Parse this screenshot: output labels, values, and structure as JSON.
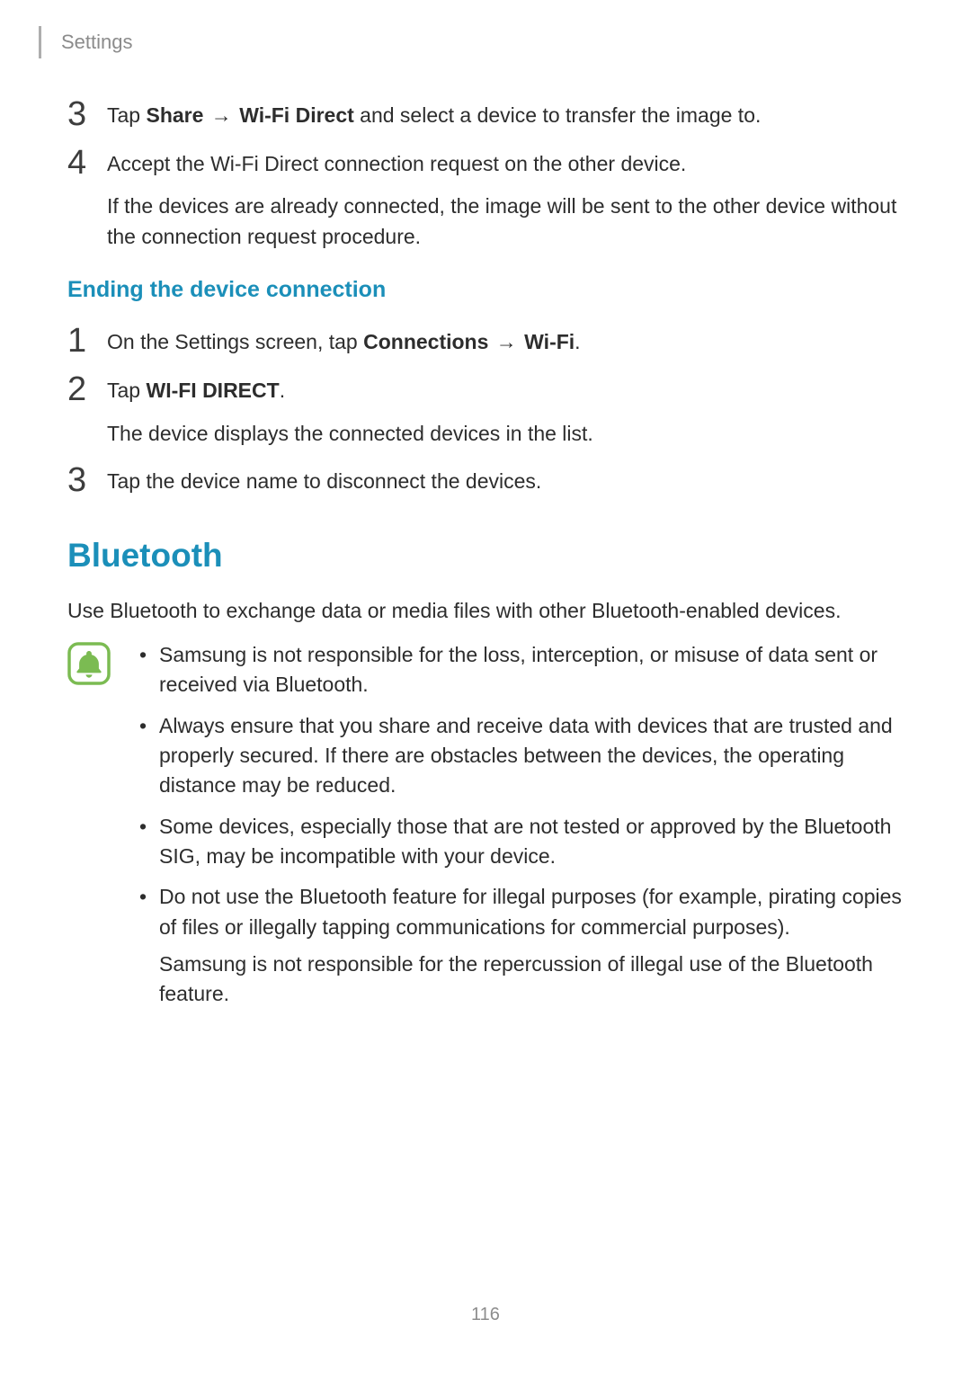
{
  "header": {
    "section": "Settings"
  },
  "steps_a": [
    {
      "num": "3",
      "lines": [
        {
          "segs": [
            {
              "t": "Tap "
            },
            {
              "t": "Share",
              "b": true
            },
            {
              "t": " → ",
              "arrow": true
            },
            {
              "t": "Wi-Fi Direct",
              "b": true
            },
            {
              "t": " and select a device to transfer the image to."
            }
          ]
        }
      ]
    },
    {
      "num": "4",
      "lines": [
        {
          "segs": [
            {
              "t": "Accept the Wi-Fi Direct connection request on the other device."
            }
          ]
        },
        {
          "segs": [
            {
              "t": "If the devices are already connected, the image will be sent to the other device without the connection request procedure."
            }
          ]
        }
      ]
    }
  ],
  "sub_heading": "Ending the device connection",
  "steps_b": [
    {
      "num": "1",
      "lines": [
        {
          "segs": [
            {
              "t": "On the Settings screen, tap "
            },
            {
              "t": "Connections",
              "b": true
            },
            {
              "t": " → ",
              "arrow": true
            },
            {
              "t": "Wi-Fi",
              "b": true
            },
            {
              "t": "."
            }
          ]
        }
      ]
    },
    {
      "num": "2",
      "lines": [
        {
          "segs": [
            {
              "t": "Tap "
            },
            {
              "t": "WI-FI DIRECT",
              "b": true
            },
            {
              "t": "."
            }
          ]
        },
        {
          "segs": [
            {
              "t": "The device displays the connected devices in the list."
            }
          ]
        }
      ]
    },
    {
      "num": "3",
      "lines": [
        {
          "segs": [
            {
              "t": "Tap the device name to disconnect the devices."
            }
          ]
        }
      ]
    }
  ],
  "section_heading": "Bluetooth",
  "intro": "Use Bluetooth to exchange data or media files with other Bluetooth-enabled devices.",
  "note_icon": {
    "border": "#7bbb52",
    "bell": "#7bbb52",
    "radius": 10
  },
  "notes": [
    {
      "text": "Samsung is not responsible for the loss, interception, or misuse of data sent or received via Bluetooth."
    },
    {
      "text": "Always ensure that you share and receive data with devices that are trusted and properly secured. If there are obstacles between the devices, the operating distance may be reduced."
    },
    {
      "text": "Some devices, especially those that are not tested or approved by the Bluetooth SIG, may be incompatible with your device."
    },
    {
      "text": "Do not use the Bluetooth feature for illegal purposes (for example, pirating copies of files or illegally tapping communications for commercial purposes).",
      "sub": "Samsung is not responsible for the repercussion of illegal use of the Bluetooth feature."
    }
  ],
  "page_number": "116",
  "colors": {
    "heading": "#1b8fb9",
    "body": "#2d2d2d",
    "muted": "#8b8b8b",
    "page_bg": "#ffffff"
  }
}
